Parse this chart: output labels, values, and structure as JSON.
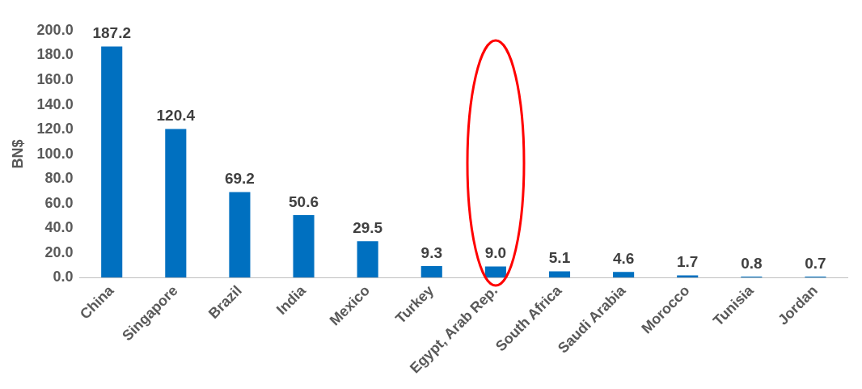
{
  "chart_data": {
    "type": "bar",
    "ylabel": "BN$",
    "categories": [
      "China",
      "Singapore",
      "Brazil",
      "India",
      "Mexico",
      "Turkey",
      "Egypt, Arab Rep.",
      "South Africa",
      "Saudi Arabia",
      "Morocco",
      "Tunisia",
      "Jordan"
    ],
    "values": [
      187.2,
      120.4,
      69.2,
      50.6,
      29.5,
      9.3,
      9.0,
      5.1,
      4.6,
      1.7,
      0.8,
      0.7
    ],
    "color": "#0070c0",
    "ylim": [
      0,
      200
    ],
    "yticks": [
      {
        "value": 0,
        "label": "0.0"
      },
      {
        "value": 20,
        "label": "20.0"
      },
      {
        "value": 40,
        "label": "40.0"
      },
      {
        "value": 60,
        "label": "60.0"
      },
      {
        "value": 80,
        "label": "80.0"
      },
      {
        "value": 100,
        "label": "100.0"
      },
      {
        "value": 120,
        "label": "120.0"
      },
      {
        "value": 140,
        "label": "140.0"
      },
      {
        "value": 160,
        "label": "160.0"
      },
      {
        "value": 180,
        "label": "180.0"
      },
      {
        "value": 200,
        "label": "200.0"
      }
    ],
    "value_labels": [
      "187.2",
      "120.4",
      "69.2",
      "50.6",
      "29.5",
      "9.3",
      "9.0",
      "5.1",
      "4.6",
      "1.7",
      "0.8",
      "0.7"
    ],
    "grid": false,
    "legend": false
  }
}
